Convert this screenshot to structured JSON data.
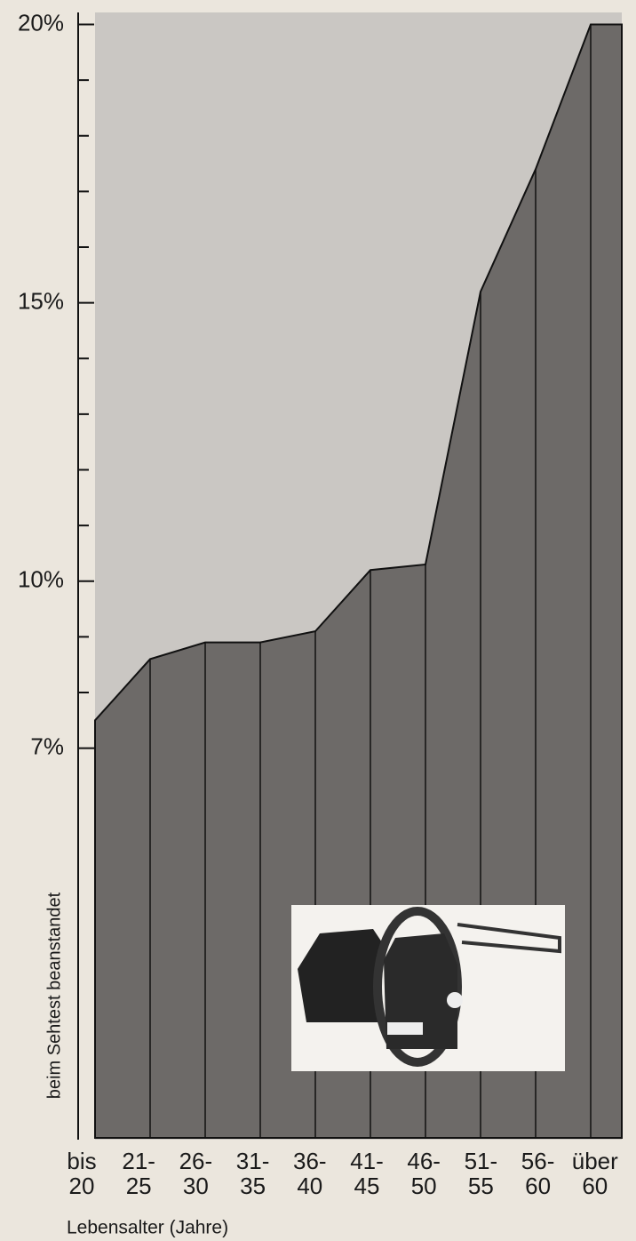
{
  "chart_data": {
    "type": "area",
    "y_axis_label": "beim Sehtest beanstandet",
    "x_axis_label": "Lebensalter (Jahre)",
    "categories": [
      "bis\n20",
      "21-\n25",
      "26-\n30",
      "31-\n35",
      "36-\n40",
      "41-\n45",
      "46-\n50",
      "51-\n55",
      "56-\n60",
      "über\n60"
    ],
    "values": [
      7.5,
      8.6,
      8.9,
      8.9,
      9.1,
      10.2,
      10.3,
      15.2,
      17.4,
      20
    ],
    "color": "#6d6a68",
    "ylim": [
      0,
      20
    ],
    "yticks": [
      {
        "value": 7,
        "label": "7%"
      },
      {
        "value": 10,
        "label": "10%"
      },
      {
        "value": 15,
        "label": "15%"
      },
      {
        "value": 20,
        "label": "20%"
      }
    ],
    "yminorticks": [
      8,
      9,
      11,
      12,
      13,
      14,
      16,
      17,
      18,
      19
    ]
  }
}
